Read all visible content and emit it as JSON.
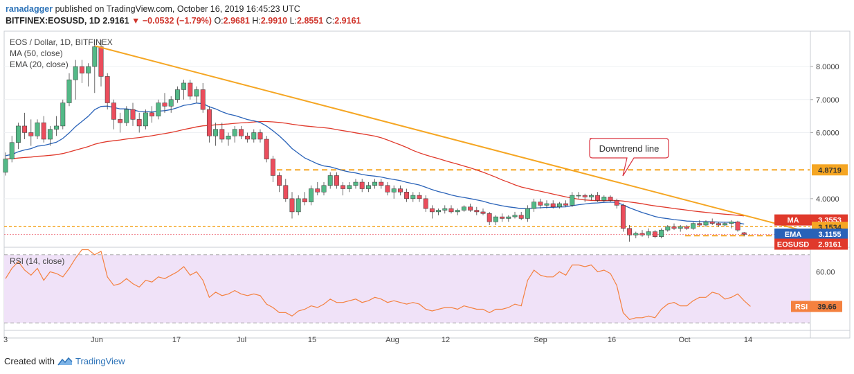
{
  "header": {
    "author": "ranadagger",
    "published_text": "published on TradingView.com, October 16, 2019 16:45:23 UTC",
    "symbol": "BITFINEX:EOSUSD, 1D",
    "last": "2.9161",
    "change": "▼ −0.0532 (−1.79%)",
    "o_label": "O:",
    "o_val": "2.9681",
    "h_label": "H:",
    "h_val": "2.9910",
    "l_label": "L:",
    "l_val": "2.8551",
    "c_label": "C:",
    "c_val": "2.9161"
  },
  "legend": {
    "title": "EOS / Dollar, 1D, BITFINEX",
    "ma": "MA (50, close)",
    "ema": "EMA (20, close)",
    "rsi": "RSI (14, close)"
  },
  "annotation": {
    "callout": "Downtrend line"
  },
  "footer": {
    "created_with": "Created with",
    "brand": "TradingView"
  },
  "colors": {
    "up": "#53b987",
    "down": "#eb4d5c",
    "ma": "#e0392b",
    "ema": "#2962b8",
    "trend": "#f5a623",
    "rsi": "#f4813f",
    "rsi_band": "#f0e2f8"
  },
  "chart_data": {
    "type": "candlestick",
    "price_axis": {
      "ticks": [
        8.0,
        7.0,
        6.0,
        4.0
      ],
      "tick_labels": [
        "8.0000",
        "7.0000",
        "6.0000",
        "4.0000"
      ],
      "range": [
        2.55,
        9.05
      ]
    },
    "x_axis": {
      "ticks": [
        "3",
        "Jun",
        "17",
        "Jul",
        "15",
        "Aug",
        "12",
        "Sep",
        "16",
        "Oct",
        "14"
      ]
    },
    "price_labels": [
      {
        "name": "level-resistance",
        "text": "4.8719",
        "value": 4.8719,
        "color": "#f5a623"
      },
      {
        "name": "ma-label",
        "text": "MA",
        "value": 3.3553,
        "color": "#e0392b",
        "value_text": "3.3553"
      },
      {
        "name": "level-support",
        "text": "3.1534",
        "value": 3.1534,
        "color": "#f5a623"
      },
      {
        "name": "ema-label",
        "text": "EMA",
        "value": 3.1155,
        "color": "#2962b8",
        "value_text": "3.1155"
      },
      {
        "name": "last-price-label",
        "text": "EOSUSD",
        "value": 2.9161,
        "color": "#e0392b",
        "value_text": "2.9161"
      }
    ],
    "levels": [
      4.8719,
      3.1534
    ],
    "trendline": [
      {
        "x": 0,
        "y": 8.62
      },
      {
        "x": 154,
        "y": 3.19
      }
    ],
    "candles": [
      [
        4.8,
        5.4,
        4.7,
        5.2
      ],
      [
        5.2,
        5.9,
        5.1,
        5.7
      ],
      [
        5.7,
        6.3,
        5.5,
        6.2
      ],
      [
        6.2,
        6.6,
        5.8,
        6.0
      ],
      [
        6.0,
        6.4,
        5.6,
        5.9
      ],
      [
        5.9,
        6.4,
        5.8,
        6.3
      ],
      [
        6.3,
        6.5,
        5.7,
        5.8
      ],
      [
        5.8,
        6.2,
        5.6,
        6.1
      ],
      [
        6.1,
        6.5,
        5.9,
        6.2
      ],
      [
        6.2,
        7.0,
        6.1,
        6.9
      ],
      [
        6.9,
        7.8,
        6.8,
        7.6
      ],
      [
        7.6,
        8.2,
        7.0,
        8.0
      ],
      [
        8.0,
        8.2,
        7.5,
        7.8
      ],
      [
        7.8,
        8.1,
        7.4,
        8.0
      ],
      [
        8.0,
        8.7,
        7.2,
        8.6
      ],
      [
        8.6,
        8.8,
        7.4,
        7.7
      ],
      [
        7.7,
        7.8,
        6.7,
        6.9
      ],
      [
        6.9,
        7.0,
        6.1,
        6.4
      ],
      [
        6.4,
        6.6,
        6.0,
        6.3
      ],
      [
        6.3,
        6.8,
        6.2,
        6.7
      ],
      [
        6.7,
        6.9,
        6.2,
        6.4
      ],
      [
        6.4,
        6.6,
        6.0,
        6.2
      ],
      [
        6.2,
        6.7,
        6.1,
        6.6
      ],
      [
        6.6,
        6.8,
        6.3,
        6.5
      ],
      [
        6.5,
        7.0,
        6.4,
        6.9
      ],
      [
        6.9,
        7.2,
        6.6,
        6.8
      ],
      [
        6.8,
        7.1,
        6.6,
        7.0
      ],
      [
        7.0,
        7.4,
        6.9,
        7.3
      ],
      [
        7.3,
        7.6,
        7.0,
        7.5
      ],
      [
        7.5,
        7.6,
        7.0,
        7.1
      ],
      [
        7.1,
        7.4,
        6.9,
        7.3
      ],
      [
        7.3,
        7.5,
        6.6,
        6.7
      ],
      [
        6.7,
        6.8,
        5.7,
        5.9
      ],
      [
        5.9,
        6.3,
        5.6,
        6.1
      ],
      [
        6.1,
        6.3,
        5.7,
        5.8
      ],
      [
        5.8,
        6.0,
        5.6,
        5.9
      ],
      [
        5.9,
        6.2,
        5.7,
        6.1
      ],
      [
        6.1,
        6.2,
        5.8,
        5.9
      ],
      [
        5.9,
        6.0,
        5.7,
        5.8
      ],
      [
        5.8,
        6.1,
        5.7,
        6.0
      ],
      [
        6.0,
        6.1,
        5.7,
        5.8
      ],
      [
        5.8,
        5.9,
        5.1,
        5.2
      ],
      [
        5.2,
        5.3,
        4.5,
        4.7
      ],
      [
        4.7,
        4.8,
        4.2,
        4.4
      ],
      [
        4.4,
        4.6,
        3.9,
        4.0
      ],
      [
        4.0,
        4.2,
        3.4,
        3.6
      ],
      [
        3.6,
        4.1,
        3.5,
        4.0
      ],
      [
        4.0,
        4.2,
        3.8,
        3.9
      ],
      [
        3.9,
        4.4,
        3.8,
        4.3
      ],
      [
        4.3,
        4.5,
        4.1,
        4.2
      ],
      [
        4.2,
        4.5,
        4.1,
        4.4
      ],
      [
        4.4,
        4.8,
        4.3,
        4.7
      ],
      [
        4.7,
        4.8,
        4.3,
        4.4
      ],
      [
        4.4,
        4.5,
        4.1,
        4.3
      ],
      [
        4.3,
        4.5,
        4.2,
        4.4
      ],
      [
        4.4,
        4.6,
        4.3,
        4.5
      ],
      [
        4.5,
        4.6,
        4.2,
        4.3
      ],
      [
        4.3,
        4.5,
        4.2,
        4.4
      ],
      [
        4.4,
        4.6,
        4.3,
        4.5
      ],
      [
        4.5,
        4.6,
        4.3,
        4.4
      ],
      [
        4.4,
        4.5,
        4.1,
        4.2
      ],
      [
        4.2,
        4.4,
        4.0,
        4.3
      ],
      [
        4.3,
        4.4,
        4.1,
        4.2
      ],
      [
        4.2,
        4.3,
        3.9,
        4.0
      ],
      [
        4.0,
        4.2,
        3.9,
        4.1
      ],
      [
        4.1,
        4.2,
        3.9,
        4.0
      ],
      [
        4.0,
        4.1,
        3.6,
        3.7
      ],
      [
        3.7,
        3.8,
        3.4,
        3.6
      ],
      [
        3.6,
        3.7,
        3.5,
        3.65
      ],
      [
        3.65,
        3.8,
        3.55,
        3.7
      ],
      [
        3.7,
        3.8,
        3.55,
        3.6
      ],
      [
        3.6,
        3.7,
        3.5,
        3.65
      ],
      [
        3.65,
        3.8,
        3.6,
        3.75
      ],
      [
        3.75,
        3.85,
        3.6,
        3.65
      ],
      [
        3.65,
        3.75,
        3.5,
        3.6
      ],
      [
        3.6,
        3.7,
        3.5,
        3.55
      ],
      [
        3.55,
        3.6,
        3.2,
        3.3
      ],
      [
        3.3,
        3.5,
        3.2,
        3.45
      ],
      [
        3.45,
        3.55,
        3.3,
        3.4
      ],
      [
        3.4,
        3.5,
        3.3,
        3.45
      ],
      [
        3.45,
        3.6,
        3.4,
        3.5
      ],
      [
        3.5,
        3.6,
        3.35,
        3.4
      ],
      [
        3.4,
        3.8,
        3.3,
        3.7
      ],
      [
        3.7,
        4.0,
        3.6,
        3.9
      ],
      [
        3.9,
        4.0,
        3.7,
        3.8
      ],
      [
        3.8,
        3.95,
        3.7,
        3.85
      ],
      [
        3.85,
        3.95,
        3.7,
        3.75
      ],
      [
        3.75,
        3.9,
        3.7,
        3.85
      ],
      [
        3.85,
        3.95,
        3.75,
        3.8
      ],
      [
        3.8,
        4.2,
        3.75,
        4.1
      ],
      [
        4.1,
        4.2,
        4.0,
        4.1
      ],
      [
        4.1,
        4.15,
        3.9,
        4.05
      ],
      [
        4.05,
        4.15,
        3.95,
        4.1
      ],
      [
        4.1,
        4.2,
        3.9,
        3.95
      ],
      [
        3.95,
        4.1,
        3.9,
        4.05
      ],
      [
        4.05,
        4.1,
        3.9,
        3.95
      ],
      [
        3.95,
        4.0,
        3.7,
        3.8
      ],
      [
        3.8,
        3.85,
        3.0,
        3.1
      ],
      [
        3.1,
        3.2,
        2.7,
        2.9
      ],
      [
        2.9,
        3.0,
        2.8,
        2.95
      ],
      [
        2.95,
        3.05,
        2.85,
        2.9
      ],
      [
        2.9,
        3.1,
        2.8,
        3.0
      ],
      [
        3.0,
        3.05,
        2.8,
        2.85
      ],
      [
        2.85,
        3.1,
        2.8,
        3.05
      ],
      [
        3.05,
        3.2,
        3.0,
        3.15
      ],
      [
        3.15,
        3.25,
        3.05,
        3.1
      ],
      [
        3.1,
        3.2,
        3.0,
        3.15
      ],
      [
        3.15,
        3.2,
        3.05,
        3.1
      ],
      [
        3.1,
        3.3,
        3.05,
        3.25
      ],
      [
        3.25,
        3.35,
        3.15,
        3.2
      ],
      [
        3.2,
        3.35,
        3.15,
        3.3
      ],
      [
        3.3,
        3.4,
        3.2,
        3.25
      ],
      [
        3.25,
        3.3,
        3.15,
        3.2
      ],
      [
        3.2,
        3.3,
        3.15,
        3.25
      ],
      [
        3.25,
        3.35,
        3.1,
        3.3
      ],
      [
        3.3,
        3.33,
        3.0,
        3.05
      ],
      [
        2.97,
        2.99,
        2.86,
        2.92
      ]
    ],
    "rsi": {
      "label": "RSI",
      "last": 39.66,
      "last_text": "39.66",
      "tick_labels": [
        "60.00"
      ],
      "ticks": [
        60
      ],
      "upper": 70,
      "lower": 30,
      "range": [
        26,
        74
      ],
      "values": [
        56,
        62,
        66,
        61,
        58,
        62,
        55,
        60,
        59,
        57,
        62,
        68,
        73,
        73,
        70,
        72,
        57,
        52,
        53,
        56,
        53,
        51,
        55,
        54,
        57,
        56,
        58,
        60,
        63,
        58,
        60,
        55,
        45,
        48,
        46,
        47,
        49,
        47,
        46,
        47,
        46,
        41,
        39,
        36,
        36,
        34,
        37,
        38,
        40,
        39,
        41,
        44,
        42,
        42,
        43,
        44,
        42,
        43,
        45,
        44,
        42,
        43,
        42,
        41,
        42,
        41,
        38,
        37,
        38,
        39,
        39,
        38,
        40,
        39,
        38,
        38,
        36,
        38,
        38,
        39,
        41,
        40,
        55,
        61,
        58,
        57,
        57,
        60,
        58,
        64,
        64,
        63,
        64,
        60,
        61,
        59,
        52,
        36,
        32,
        33,
        33,
        34,
        33,
        38,
        41,
        42,
        40,
        40,
        43,
        45,
        45,
        48,
        47,
        44,
        45,
        47,
        43,
        39.66
      ]
    }
  }
}
